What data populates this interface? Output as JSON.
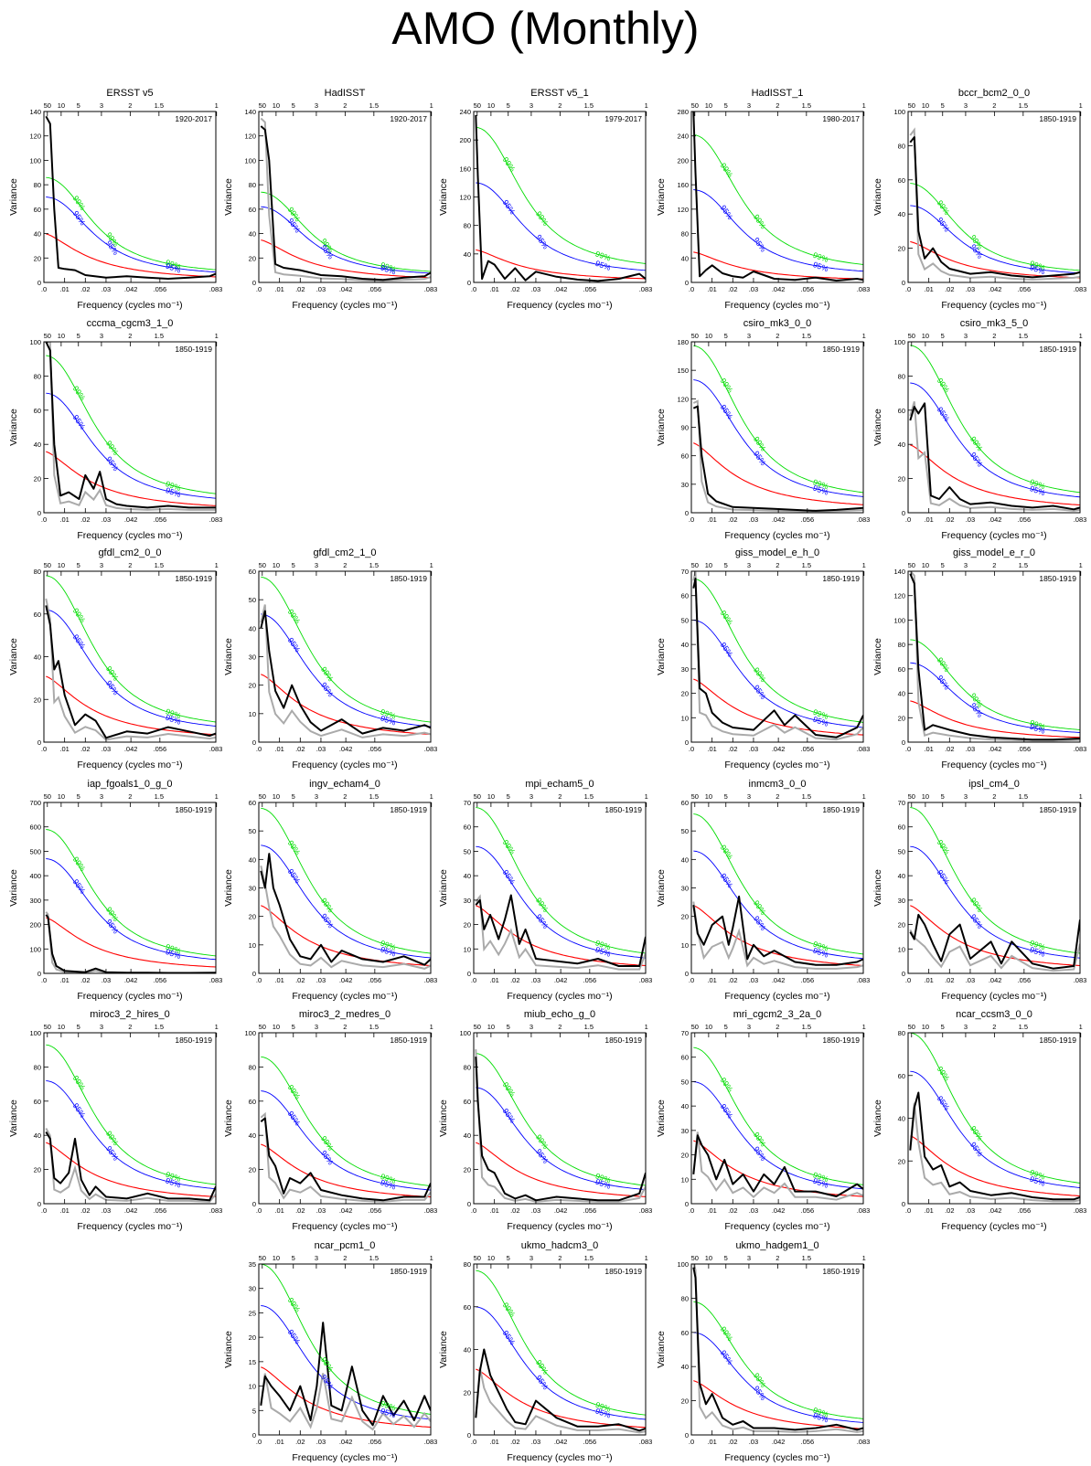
{
  "title": "AMO (Monthly)",
  "common": {
    "xlabel": "Frequency (cycles mo⁻¹)",
    "ylabel": "Variance",
    "xticks": [
      ".0",
      ".01",
      ".02",
      ".03",
      ".042",
      ".056",
      ".083"
    ],
    "xtick_values": [
      0,
      0.01,
      0.02,
      0.03,
      0.042,
      0.056,
      0.083
    ],
    "period_ticks": [
      "50",
      "10",
      "5",
      "3",
      "2",
      "1.5",
      "1"
    ],
    "period_values": [
      50,
      10,
      5,
      3,
      2,
      1.5,
      1
    ],
    "xlim": [
      0,
      0.083
    ],
    "label_95": "95%",
    "label_99": "99%",
    "colors": {
      "spectrum": "#000000",
      "model_ref": "#aaaaaa",
      "red_noise": "#ff0000",
      "sig95": "#0000ff",
      "sig99": "#00dd00"
    }
  },
  "chart_data": [
    {
      "type": "line",
      "title": "ERSST v5",
      "period": "1920-2017",
      "ylim": [
        0,
        140
      ],
      "yticks": [
        0,
        20,
        40,
        60,
        80,
        100,
        120,
        140
      ],
      "red0": 40,
      "sig95_0": 70,
      "sig99_0": 86,
      "x": [
        0.001,
        0.003,
        0.005,
        0.007,
        0.01,
        0.015,
        0.02,
        0.03,
        0.04,
        0.05,
        0.06,
        0.07,
        0.08,
        0.083
      ],
      "values": [
        136,
        130,
        60,
        12,
        11,
        10,
        6,
        4,
        5,
        4,
        3,
        4,
        5,
        7
      ]
    },
    {
      "type": "line",
      "title": "HadISST",
      "period": "1920-2017",
      "ylim": [
        0,
        140
      ],
      "yticks": [
        0,
        20,
        40,
        60,
        80,
        100,
        120,
        140
      ],
      "red0": 35,
      "sig95_0": 62,
      "sig99_0": 74,
      "x": [
        0.001,
        0.003,
        0.005,
        0.008,
        0.012,
        0.02,
        0.03,
        0.04,
        0.05,
        0.06,
        0.07,
        0.08,
        0.083
      ],
      "values": [
        128,
        125,
        100,
        15,
        12,
        10,
        6,
        5,
        3,
        2,
        4,
        5,
        8
      ]
    },
    {
      "type": "line",
      "title": "ERSST v5_1",
      "period": "1979-2017",
      "ylim": [
        0,
        240
      ],
      "yticks": [
        0,
        40,
        80,
        120,
        160,
        200,
        240
      ],
      "red0": 46,
      "sig95_0": 140,
      "sig99_0": 218,
      "x": [
        0.001,
        0.002,
        0.004,
        0.007,
        0.01,
        0.015,
        0.02,
        0.025,
        0.03,
        0.04,
        0.05,
        0.06,
        0.07,
        0.08,
        0.083
      ],
      "values": [
        235,
        150,
        5,
        30,
        25,
        5,
        20,
        3,
        15,
        8,
        4,
        2,
        5,
        12,
        5
      ]
    },
    {
      "type": "line",
      "title": "HadISST_1",
      "period": "1980-2017",
      "ylim": [
        0,
        280
      ],
      "yticks": [
        0,
        40,
        80,
        120,
        160,
        200,
        240,
        280
      ],
      "red0": 50,
      "sig95_0": 152,
      "sig99_0": 242,
      "x": [
        0.001,
        0.002,
        0.004,
        0.007,
        0.01,
        0.015,
        0.02,
        0.025,
        0.03,
        0.04,
        0.05,
        0.06,
        0.07,
        0.08,
        0.083
      ],
      "values": [
        280,
        180,
        10,
        20,
        28,
        15,
        10,
        8,
        18,
        6,
        4,
        8,
        3,
        6,
        4
      ]
    },
    {
      "type": "line",
      "title": "bccr_bcm2_0_0",
      "period": "1850-1919",
      "ylim": [
        0,
        100
      ],
      "yticks": [
        0,
        20,
        40,
        60,
        80,
        100
      ],
      "red0": 24,
      "sig95_0": 45,
      "sig99_0": 58,
      "x": [
        0.001,
        0.003,
        0.005,
        0.008,
        0.012,
        0.016,
        0.02,
        0.03,
        0.04,
        0.05,
        0.06,
        0.07,
        0.08,
        0.083
      ],
      "values": [
        82,
        85,
        30,
        14,
        20,
        12,
        8,
        5,
        6,
        4,
        3,
        4,
        5,
        6
      ]
    },
    {
      "type": "line",
      "title": "cccma_cgcm3_1_0",
      "period": "1850-1919",
      "ylim": [
        0,
        100
      ],
      "yticks": [
        0,
        20,
        40,
        60,
        80,
        100
      ],
      "red0": 36,
      "sig95_0": 70,
      "sig99_0": 92,
      "x": [
        0.001,
        0.003,
        0.005,
        0.008,
        0.012,
        0.017,
        0.02,
        0.024,
        0.027,
        0.03,
        0.035,
        0.04,
        0.05,
        0.06,
        0.07,
        0.083
      ],
      "values": [
        100,
        95,
        40,
        10,
        12,
        8,
        22,
        14,
        24,
        8,
        5,
        4,
        3,
        4,
        3,
        3
      ]
    },
    {
      "type": "line",
      "title": "csiro_mk3_0_0",
      "period": "1850-1919",
      "ylim": [
        0,
        180
      ],
      "yticks": [
        0,
        30,
        60,
        90,
        120,
        150,
        180
      ],
      "red0": 74,
      "sig95_0": 140,
      "sig99_0": 176,
      "x": [
        0.001,
        0.003,
        0.005,
        0.008,
        0.012,
        0.02,
        0.03,
        0.04,
        0.05,
        0.06,
        0.07,
        0.083
      ],
      "values": [
        110,
        112,
        60,
        20,
        12,
        6,
        5,
        4,
        3,
        2,
        3,
        5
      ]
    },
    {
      "type": "line",
      "title": "csiro_mk3_5_0",
      "period": "1850-1919",
      "ylim": [
        0,
        100
      ],
      "yticks": [
        0,
        20,
        40,
        60,
        80,
        100
      ],
      "red0": 40,
      "sig95_0": 76,
      "sig99_0": 98,
      "x": [
        0.001,
        0.003,
        0.005,
        0.008,
        0.011,
        0.015,
        0.02,
        0.025,
        0.03,
        0.04,
        0.05,
        0.06,
        0.07,
        0.08,
        0.083
      ],
      "values": [
        54,
        62,
        58,
        64,
        10,
        8,
        15,
        8,
        5,
        6,
        4,
        3,
        4,
        2,
        3
      ]
    },
    {
      "type": "line",
      "title": "gfdl_cm2_0_0",
      "period": "1850-1919",
      "ylim": [
        0,
        80
      ],
      "yticks": [
        0,
        20,
        40,
        60,
        80
      ],
      "red0": 31,
      "sig95_0": 62,
      "sig99_0": 78,
      "x": [
        0.001,
        0.003,
        0.005,
        0.007,
        0.01,
        0.015,
        0.02,
        0.025,
        0.03,
        0.04,
        0.05,
        0.06,
        0.07,
        0.08,
        0.083
      ],
      "values": [
        64,
        55,
        34,
        38,
        22,
        8,
        13,
        10,
        2,
        5,
        4,
        7,
        5,
        3,
        4
      ]
    },
    {
      "type": "line",
      "title": "gfdl_cm2_1_0",
      "period": "1850-1919",
      "ylim": [
        0,
        60
      ],
      "yticks": [
        0,
        10,
        20,
        30,
        40,
        50,
        60
      ],
      "red0": 24,
      "sig95_0": 45,
      "sig99_0": 58,
      "x": [
        0.001,
        0.003,
        0.005,
        0.008,
        0.012,
        0.016,
        0.02,
        0.025,
        0.03,
        0.04,
        0.05,
        0.06,
        0.07,
        0.08,
        0.083
      ],
      "values": [
        40,
        46,
        32,
        18,
        12,
        20,
        13,
        7,
        4,
        8,
        3,
        5,
        4,
        6,
        5
      ]
    },
    {
      "type": "line",
      "title": "giss_model_e_h_0",
      "period": "1850-1919",
      "ylim": [
        0,
        70
      ],
      "yticks": [
        0,
        10,
        20,
        30,
        40,
        50,
        60,
        70
      ],
      "red0": 26,
      "sig95_0": 50,
      "sig99_0": 67,
      "x": [
        0.001,
        0.002,
        0.004,
        0.007,
        0.01,
        0.015,
        0.02,
        0.03,
        0.04,
        0.045,
        0.05,
        0.06,
        0.07,
        0.08,
        0.083
      ],
      "values": [
        63,
        67,
        22,
        20,
        12,
        8,
        6,
        5,
        13,
        7,
        11,
        3,
        2,
        6,
        11
      ]
    },
    {
      "type": "line",
      "title": "giss_model_e_r_0",
      "period": "1850-1919",
      "ylim": [
        0,
        140
      ],
      "yticks": [
        0,
        20,
        40,
        60,
        80,
        100,
        120,
        140
      ],
      "red0": 34,
      "sig95_0": 65,
      "sig99_0": 84,
      "x": [
        0.001,
        0.003,
        0.005,
        0.008,
        0.012,
        0.02,
        0.03,
        0.04,
        0.05,
        0.06,
        0.07,
        0.083
      ],
      "values": [
        138,
        130,
        60,
        10,
        14,
        10,
        6,
        4,
        3,
        2,
        2,
        3
      ]
    },
    {
      "type": "line",
      "title": "iap_fgoals1_0_g_0",
      "period": "1850-1919",
      "ylim": [
        0,
        700
      ],
      "yticks": [
        0,
        100,
        200,
        300,
        400,
        500,
        600,
        700
      ],
      "red0": 230,
      "sig95_0": 470,
      "sig99_0": 590,
      "x": [
        0.001,
        0.002,
        0.004,
        0.006,
        0.01,
        0.02,
        0.025,
        0.03,
        0.04,
        0.05,
        0.06,
        0.07,
        0.083
      ],
      "values": [
        240,
        230,
        80,
        30,
        10,
        5,
        20,
        5,
        3,
        3,
        2,
        2,
        3
      ]
    },
    {
      "type": "line",
      "title": "ingv_echam4_0",
      "period": "1850-1919",
      "ylim": [
        0,
        60
      ],
      "yticks": [
        0,
        10,
        20,
        30,
        40,
        50,
        60
      ],
      "red0": 24,
      "sig95_0": 45,
      "sig99_0": 58,
      "x": [
        0.001,
        0.003,
        0.005,
        0.007,
        0.01,
        0.015,
        0.02,
        0.025,
        0.03,
        0.035,
        0.04,
        0.05,
        0.06,
        0.07,
        0.08,
        0.083
      ],
      "values": [
        36,
        30,
        42,
        30,
        24,
        12,
        6,
        5,
        10,
        4,
        8,
        5,
        4,
        6,
        3,
        5
      ]
    },
    {
      "type": "line",
      "title": "mpi_echam5_0",
      "period": "1850-1919",
      "ylim": [
        0,
        70
      ],
      "yticks": [
        0,
        10,
        20,
        30,
        40,
        50,
        60,
        70
      ],
      "red0": 28,
      "sig95_0": 52,
      "sig99_0": 68,
      "x": [
        0.001,
        0.003,
        0.005,
        0.008,
        0.012,
        0.015,
        0.018,
        0.022,
        0.025,
        0.03,
        0.04,
        0.05,
        0.06,
        0.07,
        0.08,
        0.083
      ],
      "values": [
        28,
        30,
        18,
        24,
        14,
        22,
        32,
        12,
        18,
        6,
        5,
        4,
        6,
        3,
        3,
        15
      ]
    },
    {
      "type": "line",
      "title": "inmcm3_0_0",
      "period": "1850-1919",
      "ylim": [
        0,
        60
      ],
      "yticks": [
        0,
        10,
        20,
        30,
        40,
        50,
        60
      ],
      "red0": 24,
      "sig95_0": 43,
      "sig99_0": 56,
      "x": [
        0.001,
        0.003,
        0.006,
        0.01,
        0.015,
        0.018,
        0.02,
        0.023,
        0.027,
        0.03,
        0.035,
        0.04,
        0.05,
        0.06,
        0.07,
        0.08,
        0.083
      ],
      "values": [
        24,
        14,
        10,
        17,
        20,
        10,
        16,
        27,
        5,
        10,
        6,
        8,
        4,
        3,
        3,
        4,
        5
      ]
    },
    {
      "type": "line",
      "title": "ipsl_cm4_0",
      "period": "1850-1919",
      "ylim": [
        0,
        70
      ],
      "yticks": [
        0,
        10,
        20,
        30,
        40,
        50,
        60,
        70
      ],
      "red0": 28,
      "sig95_0": 52,
      "sig99_0": 68,
      "x": [
        0.001,
        0.003,
        0.005,
        0.008,
        0.012,
        0.016,
        0.02,
        0.025,
        0.03,
        0.04,
        0.045,
        0.05,
        0.06,
        0.07,
        0.08,
        0.083
      ],
      "values": [
        17,
        14,
        24,
        20,
        12,
        5,
        16,
        20,
        6,
        13,
        4,
        13,
        4,
        2,
        3,
        22
      ]
    },
    {
      "type": "line",
      "title": "miroc3_2_hires_0",
      "period": "1850-1919",
      "ylim": [
        0,
        100
      ],
      "yticks": [
        0,
        20,
        40,
        60,
        80,
        100
      ],
      "red0": 36,
      "sig95_0": 72,
      "sig99_0": 93,
      "x": [
        0.001,
        0.003,
        0.005,
        0.008,
        0.012,
        0.015,
        0.018,
        0.022,
        0.025,
        0.03,
        0.04,
        0.05,
        0.06,
        0.07,
        0.08,
        0.083
      ],
      "values": [
        42,
        38,
        15,
        12,
        18,
        38,
        14,
        5,
        10,
        4,
        3,
        6,
        3,
        3,
        2,
        10
      ]
    },
    {
      "type": "line",
      "title": "miroc3_2_medres_0",
      "period": "1850-1919",
      "ylim": [
        0,
        100
      ],
      "yticks": [
        0,
        20,
        40,
        60,
        80,
        100
      ],
      "red0": 35,
      "sig95_0": 66,
      "sig99_0": 86,
      "x": [
        0.001,
        0.003,
        0.005,
        0.008,
        0.012,
        0.015,
        0.02,
        0.025,
        0.03,
        0.04,
        0.05,
        0.06,
        0.07,
        0.08,
        0.083
      ],
      "values": [
        48,
        50,
        28,
        22,
        6,
        15,
        12,
        18,
        8,
        5,
        3,
        2,
        4,
        4,
        12
      ]
    },
    {
      "type": "line",
      "title": "miub_echo_g_0",
      "period": "1850-1919",
      "ylim": [
        0,
        100
      ],
      "yticks": [
        0,
        20,
        40,
        60,
        80,
        100
      ],
      "red0": 36,
      "sig95_0": 68,
      "sig99_0": 88,
      "x": [
        0.001,
        0.002,
        0.004,
        0.007,
        0.01,
        0.015,
        0.02,
        0.025,
        0.03,
        0.04,
        0.05,
        0.06,
        0.07,
        0.08,
        0.083
      ],
      "values": [
        86,
        60,
        28,
        20,
        18,
        6,
        3,
        5,
        2,
        4,
        3,
        2,
        2,
        6,
        18
      ]
    },
    {
      "type": "line",
      "title": "mri_cgcm2_3_2a_0",
      "period": "1850-1919",
      "ylim": [
        0,
        70
      ],
      "yticks": [
        0,
        10,
        20,
        30,
        40,
        50,
        60,
        70
      ],
      "red0": 26,
      "sig95_0": 50,
      "sig99_0": 64,
      "x": [
        0.001,
        0.003,
        0.005,
        0.008,
        0.012,
        0.016,
        0.02,
        0.025,
        0.03,
        0.035,
        0.04,
        0.045,
        0.05,
        0.06,
        0.07,
        0.08,
        0.083
      ],
      "values": [
        12,
        28,
        24,
        20,
        10,
        18,
        8,
        12,
        5,
        12,
        8,
        15,
        5,
        5,
        3,
        8,
        6
      ]
    },
    {
      "type": "line",
      "title": "ncar_ccsm3_0_0",
      "period": "1850-1919",
      "ylim": [
        0,
        80
      ],
      "yticks": [
        0,
        20,
        40,
        60,
        80
      ],
      "red0": 32,
      "sig95_0": 62,
      "sig99_0": 80,
      "x": [
        0.001,
        0.003,
        0.005,
        0.008,
        0.012,
        0.016,
        0.02,
        0.025,
        0.03,
        0.04,
        0.05,
        0.06,
        0.07,
        0.08,
        0.083
      ],
      "values": [
        25,
        45,
        52,
        22,
        16,
        18,
        8,
        10,
        6,
        4,
        5,
        3,
        2,
        2,
        3
      ]
    },
    {
      "type": "line",
      "title": "ncar_pcm1_0",
      "period": "1850-1919",
      "ylim": [
        0,
        35
      ],
      "yticks": [
        0,
        5,
        10,
        15,
        20,
        25,
        30,
        35
      ],
      "red0": 14,
      "sig95_0": 26.5,
      "sig99_0": 35,
      "x": [
        0.001,
        0.003,
        0.006,
        0.01,
        0.015,
        0.02,
        0.025,
        0.028,
        0.031,
        0.035,
        0.04,
        0.045,
        0.05,
        0.055,
        0.06,
        0.065,
        0.07,
        0.075,
        0.08,
        0.083
      ],
      "values": [
        6,
        12,
        10,
        8,
        5,
        10,
        3,
        10,
        23,
        6,
        5,
        14,
        5,
        2,
        8,
        4,
        7,
        3,
        8,
        5
      ]
    },
    {
      "type": "line",
      "title": "ukmo_hadcm3_0",
      "period": "1850-1919",
      "ylim": [
        0,
        80
      ],
      "yticks": [
        0,
        20,
        40,
        60,
        80
      ],
      "red0": 31,
      "sig95_0": 60,
      "sig99_0": 77,
      "x": [
        0.001,
        0.003,
        0.005,
        0.008,
        0.012,
        0.016,
        0.02,
        0.025,
        0.03,
        0.04,
        0.05,
        0.06,
        0.07,
        0.08,
        0.083
      ],
      "values": [
        8,
        30,
        40,
        28,
        20,
        12,
        6,
        5,
        16,
        8,
        4,
        4,
        5,
        2,
        3
      ]
    },
    {
      "type": "line",
      "title": "ukmo_hadgem1_0",
      "period": "1850-1919",
      "ylim": [
        0,
        100
      ],
      "yticks": [
        0,
        20,
        40,
        60,
        80,
        100
      ],
      "red0": 32,
      "sig95_0": 60,
      "sig99_0": 78,
      "x": [
        0.001,
        0.002,
        0.004,
        0.007,
        0.01,
        0.015,
        0.02,
        0.025,
        0.03,
        0.04,
        0.05,
        0.06,
        0.07,
        0.08,
        0.083
      ],
      "values": [
        98,
        92,
        30,
        18,
        24,
        10,
        6,
        8,
        4,
        4,
        3,
        4,
        6,
        3,
        4
      ]
    }
  ]
}
